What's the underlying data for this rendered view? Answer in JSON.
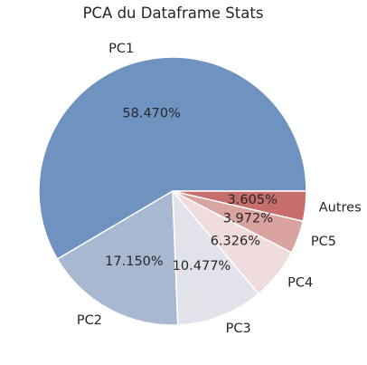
{
  "chart_data": {
    "type": "pie",
    "title": "PCA du Dataframe Stats",
    "slices": [
      {
        "label": "PC1",
        "value": 58.47,
        "pct_label": "58.470%",
        "color": "#6f92c0"
      },
      {
        "label": "PC2",
        "value": 17.15,
        "pct_label": "17.150%",
        "color": "#a8b8d0"
      },
      {
        "label": "PC3",
        "value": 10.477,
        "pct_label": "10.477%",
        "color": "#e2e3ea"
      },
      {
        "label": "PC4",
        "value": 6.326,
        "pct_label": "6.326%",
        "color": "#f0dcdc"
      },
      {
        "label": "PC5",
        "value": 3.972,
        "pct_label": "3.972%",
        "color": "#d9a3a0"
      },
      {
        "label": "Autres",
        "value": 3.605,
        "pct_label": "3.605%",
        "color": "#c66e6b"
      }
    ],
    "start_angle_deg": 0,
    "direction": "counterclockwise"
  }
}
